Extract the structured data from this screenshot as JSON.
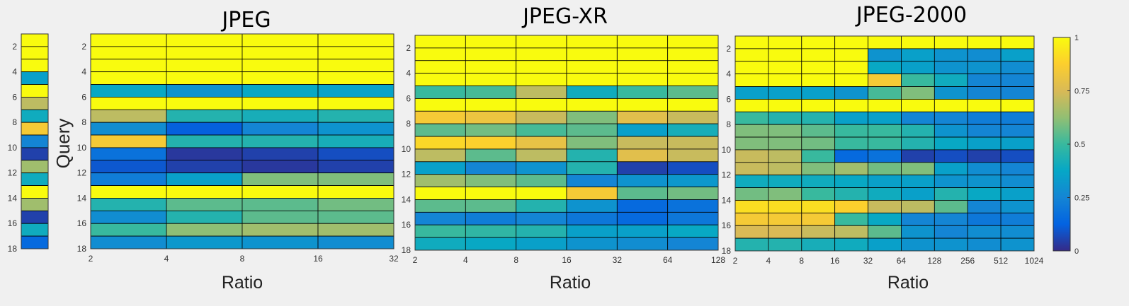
{
  "y_label": "Query",
  "x_label": "Ratio",
  "y_ticks": [
    "2",
    "4",
    "6",
    "8",
    "10",
    "12",
    "14",
    "16",
    "18"
  ],
  "colorbar": {
    "ticks": [
      "0",
      "0.25",
      "0.5",
      "0.75",
      "1"
    ]
  },
  "colormap": [
    "#352a87",
    "#0363e1",
    "#1485d4",
    "#06a7c6",
    "#38b99e",
    "#92bf73",
    "#d9ba56",
    "#fcce2e",
    "#f9fb0e"
  ],
  "chart_data": [
    {
      "type": "heatmap",
      "title": "",
      "ylabel": "",
      "series": [
        {
          "name": "",
          "values": [
            1.0,
            1.0,
            1.0,
            0.35,
            1.0,
            0.7,
            0.4,
            0.85,
            0.25,
            0.05,
            0.65,
            0.4,
            1.0,
            0.65,
            0.05,
            0.4,
            0.15
          ]
        }
      ],
      "value_range": [
        0,
        1
      ]
    },
    {
      "type": "heatmap",
      "title": "JPEG",
      "xlabel": "Ratio",
      "ylabel": "Query",
      "x_ticks": [
        "2",
        "4",
        "8",
        "16",
        "32"
      ],
      "y_range": [
        1,
        18
      ],
      "value_range": [
        0,
        1
      ],
      "rows": [
        [
          1.0,
          1.0,
          1.0,
          1.0
        ],
        [
          1.0,
          1.0,
          1.0,
          1.0
        ],
        [
          1.0,
          1.0,
          1.0,
          1.0
        ],
        [
          1.0,
          1.0,
          1.0,
          1.0
        ],
        [
          0.38,
          0.3,
          0.38,
          0.36
        ],
        [
          1.0,
          1.0,
          1.0,
          1.0
        ],
        [
          0.7,
          0.45,
          0.42,
          0.45
        ],
        [
          0.28,
          0.12,
          0.25,
          0.3
        ],
        [
          0.85,
          0.45,
          0.45,
          0.42
        ],
        [
          0.18,
          0.03,
          0.05,
          0.08
        ],
        [
          0.1,
          0.05,
          0.03,
          0.05
        ],
        [
          0.22,
          0.35,
          0.6,
          0.6
        ],
        [
          1.0,
          1.0,
          1.0,
          1.0
        ],
        [
          0.45,
          0.55,
          0.55,
          0.58
        ],
        [
          0.28,
          0.45,
          0.55,
          0.55
        ],
        [
          0.5,
          0.62,
          0.65,
          0.65
        ],
        [
          0.28,
          0.32,
          0.3,
          0.28
        ]
      ]
    },
    {
      "type": "heatmap",
      "title": "JPEG-XR",
      "xlabel": "Ratio",
      "x_ticks": [
        "2",
        "4",
        "8",
        "16",
        "32",
        "64",
        "128"
      ],
      "y_range": [
        1,
        18
      ],
      "value_range": [
        0,
        1
      ],
      "rows": [
        [
          1.0,
          1.0,
          1.0,
          1.0,
          1.0,
          1.0
        ],
        [
          1.0,
          1.0,
          1.0,
          1.0,
          1.0,
          1.0
        ],
        [
          1.0,
          1.0,
          1.0,
          1.0,
          1.0,
          1.0
        ],
        [
          1.0,
          1.0,
          1.0,
          1.0,
          1.0,
          1.0
        ],
        [
          0.5,
          0.52,
          0.7,
          0.4,
          0.5,
          0.55
        ],
        [
          1.0,
          1.0,
          1.0,
          1.0,
          1.0,
          1.0
        ],
        [
          0.85,
          0.82,
          0.72,
          0.6,
          0.78,
          0.72
        ],
        [
          0.55,
          0.58,
          0.52,
          0.55,
          0.35,
          0.42
        ],
        [
          0.9,
          0.88,
          0.8,
          0.6,
          0.72,
          0.72
        ],
        [
          0.7,
          0.55,
          0.7,
          0.45,
          0.78,
          0.72
        ],
        [
          0.35,
          0.25,
          0.3,
          0.45,
          0.05,
          0.08
        ],
        [
          0.65,
          0.6,
          0.55,
          0.25,
          0.3,
          0.32
        ],
        [
          1.0,
          1.0,
          1.0,
          0.85,
          0.55,
          0.58
        ],
        [
          0.55,
          0.55,
          0.45,
          0.3,
          0.15,
          0.18
        ],
        [
          0.25,
          0.22,
          0.25,
          0.2,
          0.15,
          0.2
        ],
        [
          0.5,
          0.48,
          0.45,
          0.35,
          0.35,
          0.38
        ],
        [
          0.4,
          0.38,
          0.35,
          0.3,
          0.28,
          0.25
        ]
      ]
    },
    {
      "type": "heatmap",
      "title": "JPEG-2000",
      "xlabel": "Ratio",
      "x_ticks": [
        "2",
        "4",
        "8",
        "16",
        "32",
        "64",
        "128",
        "256",
        "512",
        "1024"
      ],
      "y_range": [
        1,
        18
      ],
      "value_range": [
        0,
        1
      ],
      "rows": [
        [
          1.0,
          1.0,
          1.0,
          1.0,
          1.0,
          1.0,
          1.0,
          1.0,
          1.0
        ],
        [
          1.0,
          1.0,
          1.0,
          1.0,
          0.3,
          0.35,
          0.3,
          0.28,
          0.35
        ],
        [
          1.0,
          1.0,
          1.0,
          1.0,
          0.38,
          0.35,
          0.3,
          0.3,
          0.28
        ],
        [
          1.0,
          1.0,
          1.0,
          1.0,
          0.85,
          0.5,
          0.4,
          0.25,
          0.25
        ],
        [
          0.35,
          0.35,
          0.35,
          0.3,
          0.52,
          0.6,
          0.3,
          0.25,
          0.25
        ],
        [
          1.0,
          1.0,
          1.0,
          1.0,
          1.0,
          1.0,
          1.0,
          1.0,
          1.0
        ],
        [
          0.5,
          0.45,
          0.45,
          0.35,
          0.35,
          0.25,
          0.25,
          0.22,
          0.22
        ],
        [
          0.6,
          0.6,
          0.55,
          0.5,
          0.5,
          0.45,
          0.3,
          0.25,
          0.25
        ],
        [
          0.6,
          0.6,
          0.58,
          0.5,
          0.5,
          0.45,
          0.38,
          0.35,
          0.35
        ],
        [
          0.72,
          0.7,
          0.5,
          0.15,
          0.18,
          0.05,
          0.08,
          0.05,
          0.08
        ],
        [
          0.72,
          0.7,
          0.6,
          0.65,
          0.58,
          0.6,
          0.35,
          0.28,
          0.25
        ],
        [
          0.4,
          0.4,
          0.4,
          0.38,
          0.35,
          0.35,
          0.3,
          0.3,
          0.28
        ],
        [
          0.58,
          0.6,
          0.5,
          0.45,
          0.4,
          0.35,
          0.45,
          0.38,
          0.35
        ],
        [
          0.92,
          0.92,
          0.92,
          0.88,
          0.72,
          0.7,
          0.55,
          0.25,
          0.3
        ],
        [
          0.85,
          0.85,
          0.85,
          0.5,
          0.38,
          0.25,
          0.25,
          0.2,
          0.22
        ],
        [
          0.75,
          0.75,
          0.72,
          0.7,
          0.55,
          0.3,
          0.25,
          0.28,
          0.28
        ],
        [
          0.45,
          0.45,
          0.42,
          0.4,
          0.35,
          0.3,
          0.3,
          0.28,
          0.3
        ]
      ]
    }
  ]
}
